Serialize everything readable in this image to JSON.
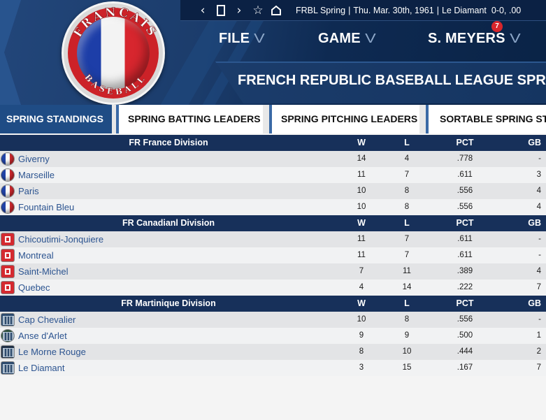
{
  "logo": {
    "top_text": "FRANCAIS",
    "bottom_text": "BASEBALL"
  },
  "topbar": {
    "icons": [
      "back-icon",
      "window-icon",
      "forward-icon",
      "star-icon",
      "home-icon"
    ],
    "league": "FRBL Spring",
    "date": "Thu. Mar. 30th, 1961",
    "game": "Le Diamant",
    "record": "0-0, .00"
  },
  "menu": {
    "file": "FILE",
    "game": "GAME",
    "user": "S. MEYERS",
    "badge": "7"
  },
  "title": "FRENCH REPUBLIC BASEBALL LEAGUE SPRING C",
  "tabs": [
    {
      "label": "SPRING STANDINGS",
      "active": true
    },
    {
      "label": "SPRING BATTING LEADERS",
      "active": false
    },
    {
      "label": "SPRING PITCHING LEADERS",
      "active": false
    },
    {
      "label": "SORTABLE SPRING STA",
      "active": false
    }
  ],
  "columns": {
    "w": "W",
    "l": "L",
    "pct": "PCT",
    "gb": "GB"
  },
  "divisions": [
    {
      "name": "FR France  Division",
      "flag": "fr",
      "teams": [
        {
          "name": "Giverny",
          "w": "14",
          "l": "4",
          "pct": ".778",
          "gb": "-"
        },
        {
          "name": "Marseille",
          "w": "11",
          "l": "7",
          "pct": ".611",
          "gb": "3"
        },
        {
          "name": "Paris",
          "w": "10",
          "l": "8",
          "pct": ".556",
          "gb": "4"
        },
        {
          "name": "Fountain Bleu",
          "w": "10",
          "l": "8",
          "pct": ".556",
          "gb": "4"
        }
      ]
    },
    {
      "name": "FR Canadianl Division",
      "flag": "ca",
      "teams": [
        {
          "name": "Chicoutimi-Jonquiere",
          "w": "11",
          "l": "7",
          "pct": ".611",
          "gb": "-"
        },
        {
          "name": "Montreal",
          "w": "11",
          "l": "7",
          "pct": ".611",
          "gb": "-"
        },
        {
          "name": "Saint-Michel",
          "w": "7",
          "l": "11",
          "pct": ".389",
          "gb": "4"
        },
        {
          "name": "Quebec",
          "w": "4",
          "l": "14",
          "pct": ".222",
          "gb": "7"
        }
      ]
    },
    {
      "name": "FR Martinique Division",
      "flag": "mq",
      "teams": [
        {
          "name": "Cap Chevalier",
          "w": "10",
          "l": "8",
          "pct": ".556",
          "gb": "-"
        },
        {
          "name": "Anse d'Arlet",
          "w": "9",
          "l": "9",
          "pct": ".500",
          "gb": "1"
        },
        {
          "name": "Le Morne Rouge",
          "w": "8",
          "l": "10",
          "pct": ".444",
          "gb": "2"
        },
        {
          "name": "Le Diamant",
          "w": "3",
          "l": "15",
          "pct": ".167",
          "gb": "7"
        }
      ]
    }
  ]
}
